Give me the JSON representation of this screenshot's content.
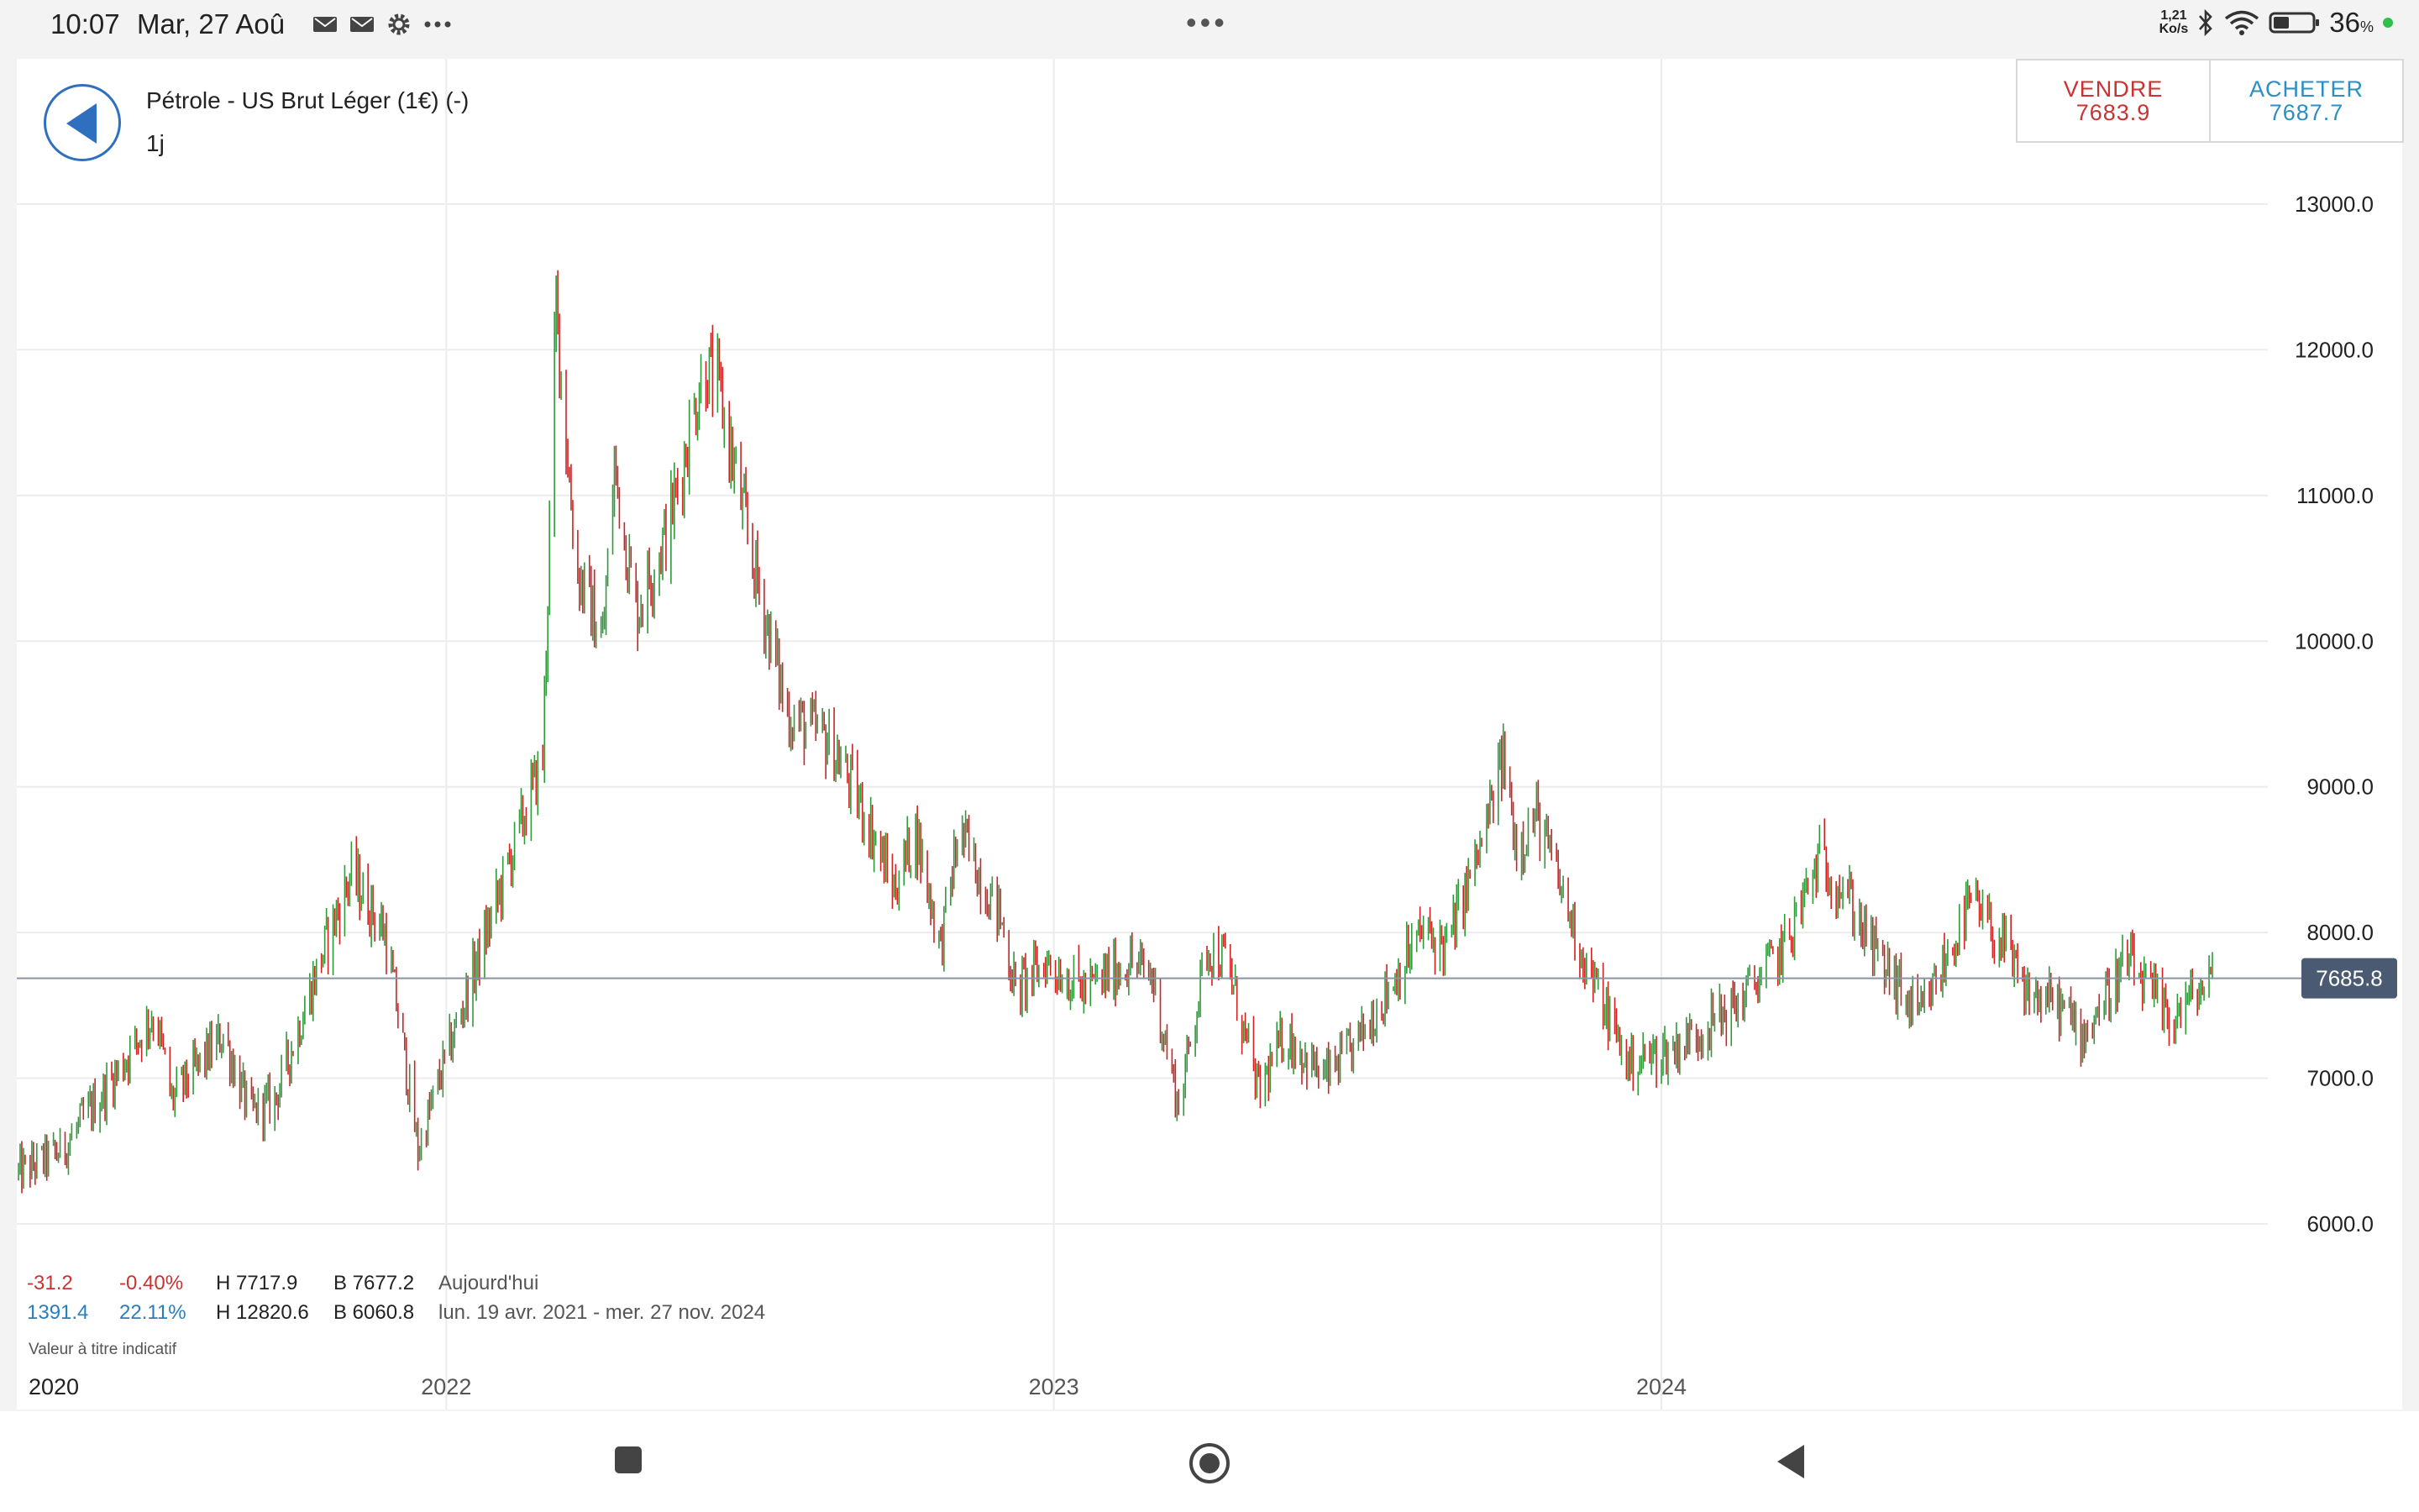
{
  "status_bar": {
    "time": "10:07",
    "date": "Mar, 27 Aoû",
    "net_rate_top": "1,21",
    "net_rate_unit": "Ko/s",
    "battery": "36",
    "battery_unit": "%",
    "left_icons": [
      "mail-notification-icon",
      "mail-notification-icon",
      "settings-icon",
      "more-icon"
    ]
  },
  "header": {
    "title": "Pétrole - US Brut Léger (1€) (-)",
    "period": "1j"
  },
  "trade": {
    "sell_label": "VENDRE",
    "sell_price": "7683.9",
    "buy_label": "ACHETER",
    "buy_price": "7687.7"
  },
  "stats": {
    "today": {
      "change": "-31.2",
      "change_pct": "-0.40%",
      "high": "H 7717.9",
      "low": "B 7677.2",
      "label": "Aujourd'hui"
    },
    "range": {
      "change": "1391.4",
      "change_pct": "22.11%",
      "high": "H 12820.6",
      "low": "B 6060.8",
      "label": "lun. 19 avr. 2021 - mer. 27 nov. 2024"
    },
    "note": "Valeur à titre indicatif"
  },
  "colors": {
    "up": "#2e9a3a",
    "down": "#cc2222",
    "sell": "#c83333",
    "buy": "#2b8fc2",
    "price_tag": "#4a5a73"
  },
  "chart_data": {
    "type": "candlestick",
    "x_start": "2021-04-19",
    "x_end": "2024-11-27",
    "ylim": [
      6000,
      13000
    ],
    "yticks": [
      "13000.0",
      "12000.0",
      "11000.0",
      "10000.0",
      "9000.0",
      "8000.0",
      "7000.0",
      "6000.0"
    ],
    "xticks": [
      "2020",
      "2022",
      "2023",
      "2024"
    ],
    "current_price": "7685.8",
    "close_path": [
      {
        "date": "2021-04-19",
        "close": 6350
      },
      {
        "date": "2021-05-15",
        "close": 6500
      },
      {
        "date": "2021-06-15",
        "close": 7000
      },
      {
        "date": "2021-07-10",
        "close": 7450
      },
      {
        "date": "2021-07-20",
        "close": 6850
      },
      {
        "date": "2021-08-20",
        "close": 7300
      },
      {
        "date": "2021-09-05",
        "close": 6750
      },
      {
        "date": "2021-09-20",
        "close": 6850
      },
      {
        "date": "2021-10-20",
        "close": 7900
      },
      {
        "date": "2021-11-05",
        "close": 8400
      },
      {
        "date": "2021-11-25",
        "close": 8000
      },
      {
        "date": "2021-12-05",
        "close": 7300
      },
      {
        "date": "2021-12-15",
        "close": 6500
      },
      {
        "date": "2021-12-28",
        "close": 7000
      },
      {
        "date": "2022-01-31",
        "close": 8200
      },
      {
        "date": "2022-02-28",
        "close": 9200
      },
      {
        "date": "2022-03-08",
        "close": 12300
      },
      {
        "date": "2022-03-20",
        "close": 10500
      },
      {
        "date": "2022-04-05",
        "close": 10000
      },
      {
        "date": "2022-04-12",
        "close": 11200
      },
      {
        "date": "2022-04-25",
        "close": 10200
      },
      {
        "date": "2022-05-15",
        "close": 10800
      },
      {
        "date": "2022-06-05",
        "close": 11900
      },
      {
        "date": "2022-06-14",
        "close": 11700
      },
      {
        "date": "2022-07-05",
        "close": 10500
      },
      {
        "date": "2022-07-25",
        "close": 9500
      },
      {
        "date": "2022-08-20",
        "close": 9300
      },
      {
        "date": "2022-09-10",
        "close": 8800
      },
      {
        "date": "2022-09-27",
        "close": 8300
      },
      {
        "date": "2022-10-10",
        "close": 8700
      },
      {
        "date": "2022-10-25",
        "close": 7900
      },
      {
        "date": "2022-11-05",
        "close": 8700
      },
      {
        "date": "2022-11-30",
        "close": 8100
      },
      {
        "date": "2022-12-09",
        "close": 7600
      },
      {
        "date": "2022-12-28",
        "close": 7800
      },
      {
        "date": "2023-01-20",
        "close": 7600
      },
      {
        "date": "2023-02-15",
        "close": 7800
      },
      {
        "date": "2023-03-01",
        "close": 7700
      },
      {
        "date": "2023-03-17",
        "close": 6800
      },
      {
        "date": "2023-04-03",
        "close": 7900
      },
      {
        "date": "2023-04-15",
        "close": 7800
      },
      {
        "date": "2023-05-04",
        "close": 6900
      },
      {
        "date": "2023-05-20",
        "close": 7300
      },
      {
        "date": "2023-06-12",
        "close": 7000
      },
      {
        "date": "2023-06-30",
        "close": 7200
      },
      {
        "date": "2023-07-20",
        "close": 7600
      },
      {
        "date": "2023-08-10",
        "close": 8000
      },
      {
        "date": "2023-08-25",
        "close": 7900
      },
      {
        "date": "2023-09-15",
        "close": 8600
      },
      {
        "date": "2023-09-28",
        "close": 9200
      },
      {
        "date": "2023-10-06",
        "close": 8600
      },
      {
        "date": "2023-10-18",
        "close": 8800
      },
      {
        "date": "2023-11-16",
        "close": 7800
      },
      {
        "date": "2023-12-12",
        "close": 7100
      },
      {
        "date": "2024-01-08",
        "close": 7200
      },
      {
        "date": "2024-02-15",
        "close": 7500
      },
      {
        "date": "2024-03-15",
        "close": 7900
      },
      {
        "date": "2024-04-05",
        "close": 8500
      },
      {
        "date": "2024-04-20",
        "close": 8300
      },
      {
        "date": "2024-05-06",
        "close": 7900
      },
      {
        "date": "2024-06-04",
        "close": 7400
      },
      {
        "date": "2024-07-05",
        "close": 8200
      },
      {
        "date": "2024-07-25",
        "close": 7900
      },
      {
        "date": "2024-08-05",
        "close": 7600
      },
      {
        "date": "2024-08-27",
        "close": 7500
      },
      {
        "date": "2024-09-10",
        "close": 7300
      },
      {
        "date": "2024-10-07",
        "close": 7800
      },
      {
        "date": "2024-11-01",
        "close": 7400
      },
      {
        "date": "2024-11-27",
        "close": 7686
      }
    ]
  }
}
